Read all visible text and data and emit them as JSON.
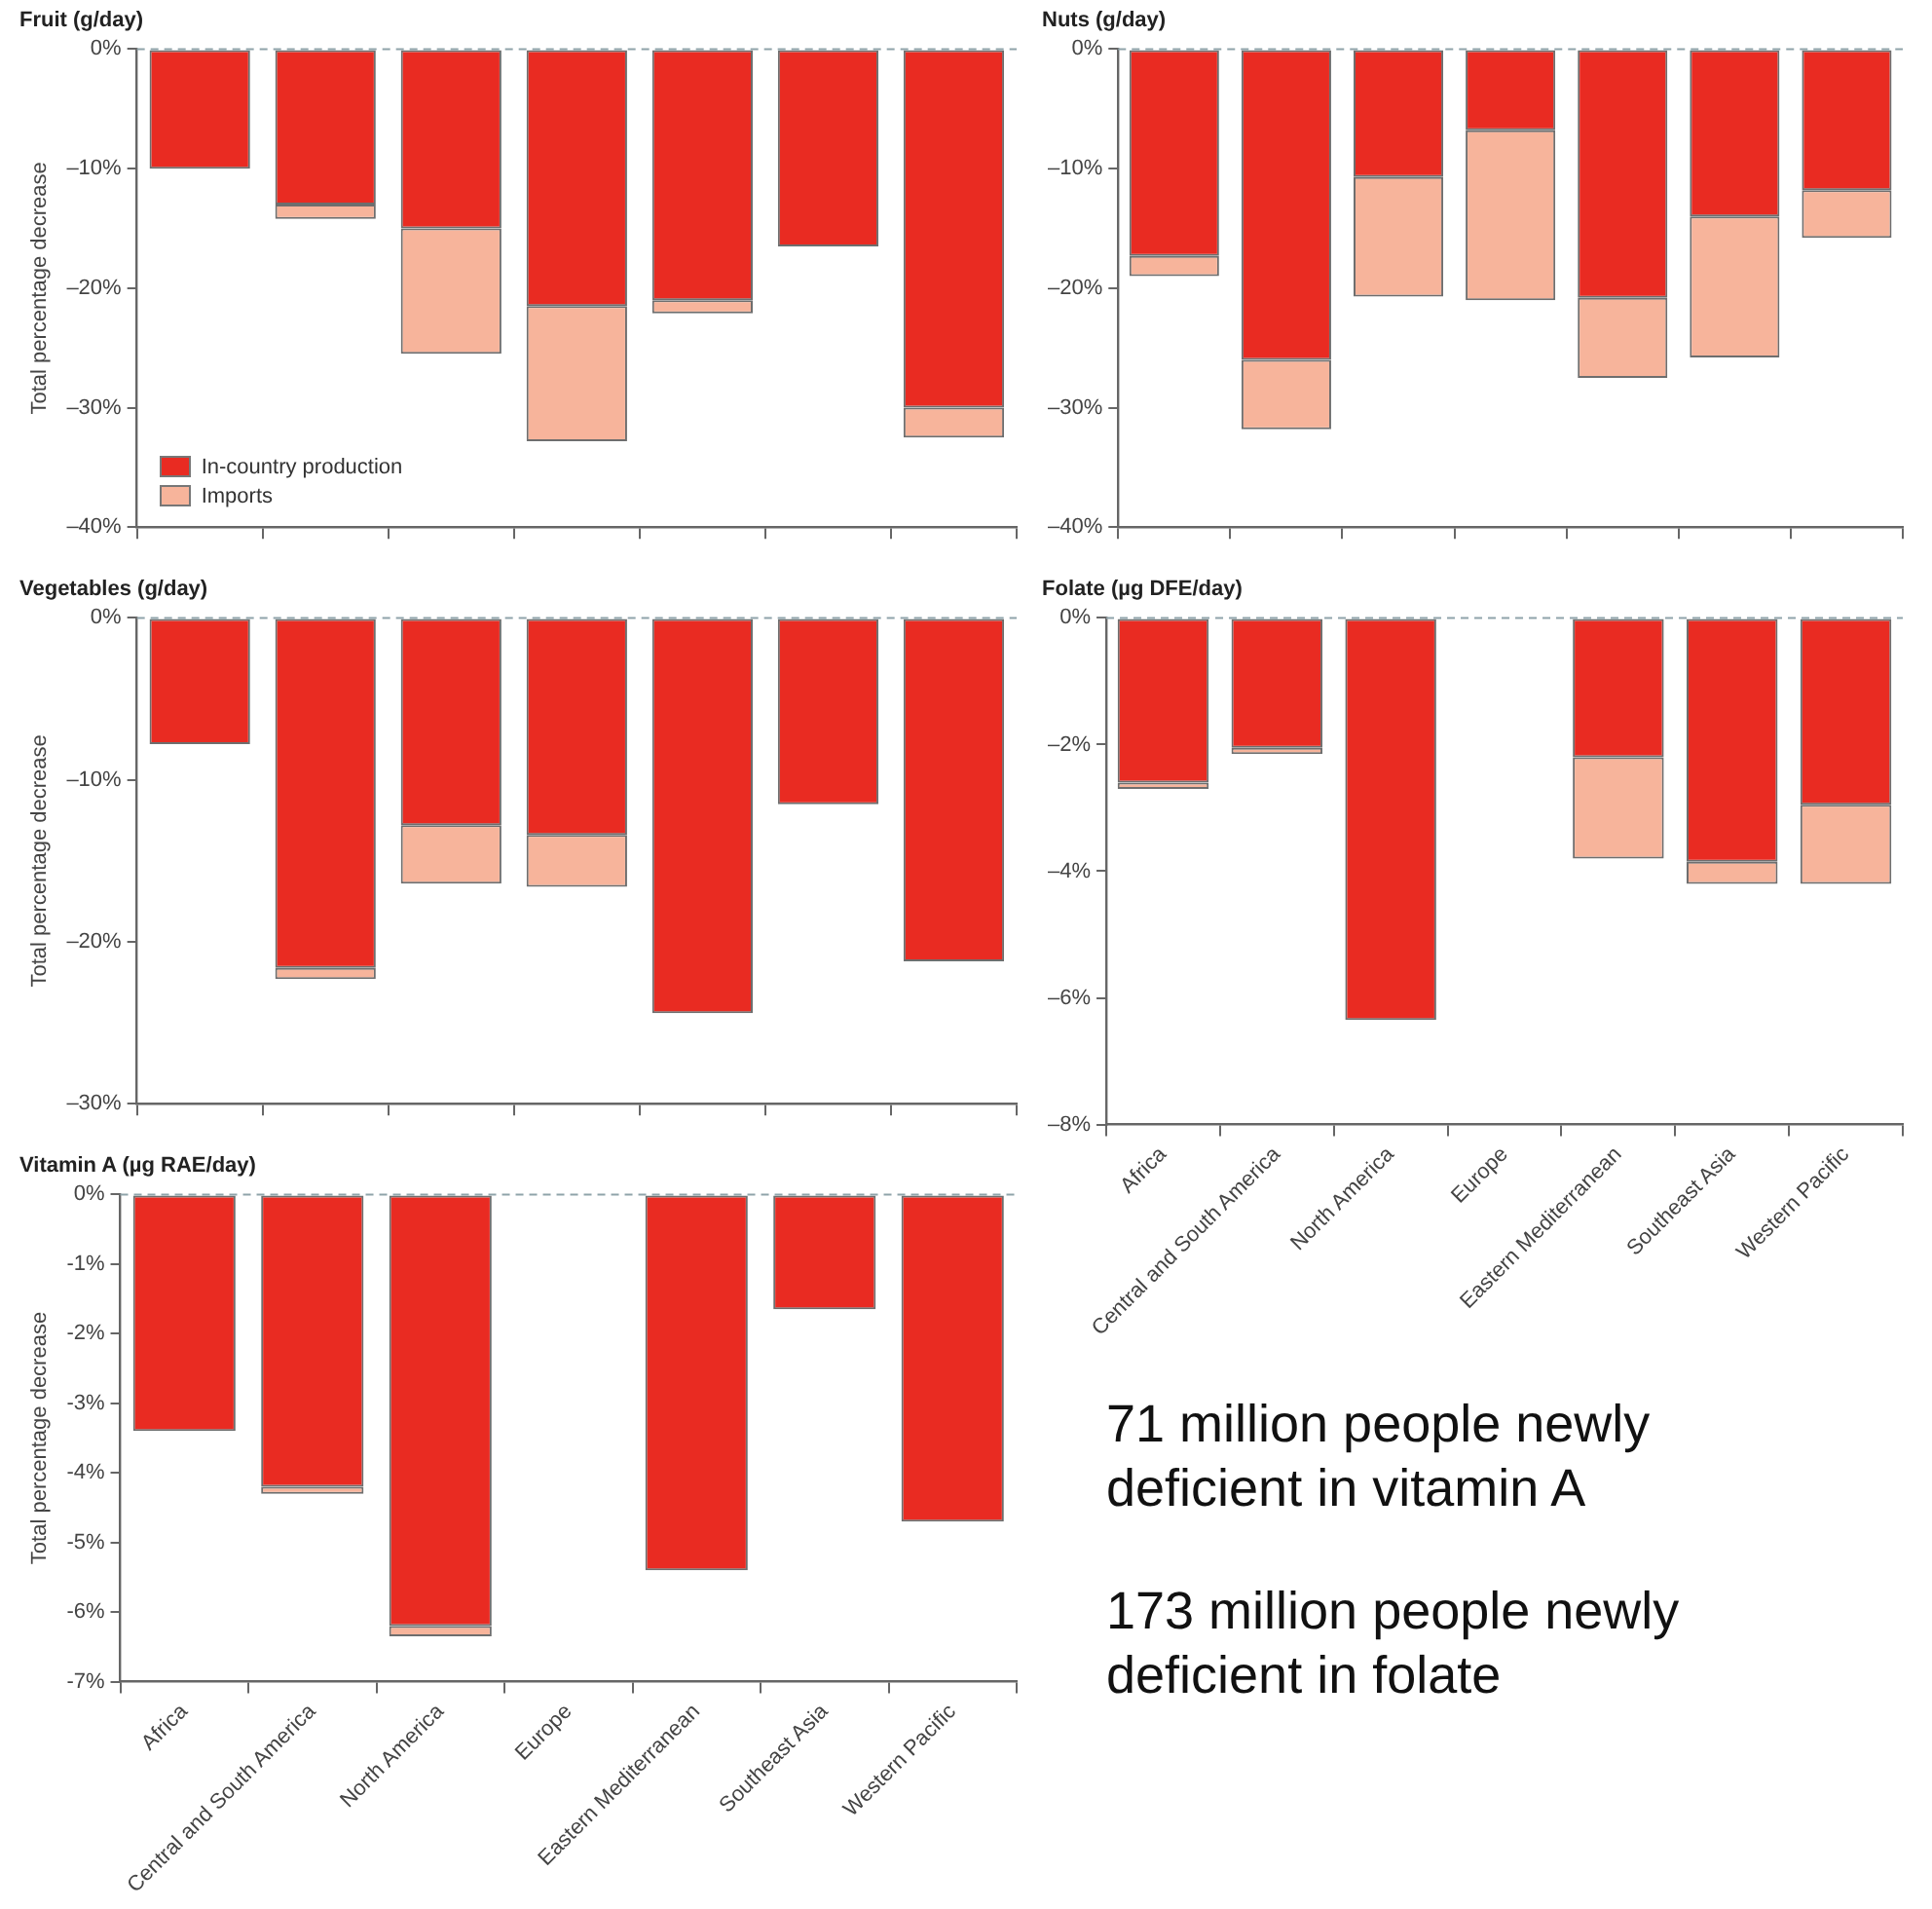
{
  "chart_data": [
    {
      "type": "bar",
      "title": "Fruit (g/day)",
      "ylabel": "Total percentage decrease",
      "stacked": true,
      "legend": "bottom left",
      "grid": false,
      "categories": [
        null,
        null,
        null,
        null,
        null,
        null,
        null
      ],
      "series": [
        {
          "name": "In-country production",
          "color": "#e92b22",
          "values": [
            -10,
            -13,
            -15,
            -21.5,
            -21,
            -16.5,
            -30
          ]
        },
        {
          "name": "Imports",
          "color": "#f7b49b",
          "values": [
            0,
            -1.2,
            -10.5,
            -11.3,
            -1.1,
            0,
            -2.5
          ]
        }
      ],
      "ylim": [
        -40,
        0
      ],
      "yticks": [
        {
          "value": 0,
          "label": "0%"
        },
        {
          "value": -10,
          "label": "–10%"
        },
        {
          "value": -20,
          "label": "–20%"
        },
        {
          "value": -30,
          "label": "–30%"
        },
        {
          "value": -40,
          "label": "–40%"
        }
      ],
      "ref_lines": [
        {
          "axis": "y",
          "value": 0,
          "color": "#8fa3aa",
          "line_style": "dashed"
        }
      ]
    },
    {
      "type": "bar",
      "title": "Nuts (g/day)",
      "stacked": true,
      "grid": false,
      "categories": [
        null,
        null,
        null,
        null,
        null,
        null,
        null
      ],
      "series": [
        {
          "color": "#e92b22",
          "values": [
            -17.3,
            -26,
            -10.7,
            -6.8,
            -20.8,
            -14,
            -11.8
          ]
        },
        {
          "color": "#f7b49b",
          "values": [
            -1.7,
            -5.8,
            -10,
            -14.2,
            -6.7,
            -11.8,
            -4
          ]
        }
      ],
      "ylim": [
        -40,
        0
      ],
      "yticks": [
        {
          "value": 0,
          "label": "0%"
        },
        {
          "value": -10,
          "label": "–10%"
        },
        {
          "value": -20,
          "label": "–20%"
        },
        {
          "value": -30,
          "label": "–30%"
        },
        {
          "value": -40,
          "label": "–40%"
        }
      ],
      "ref_lines": [
        {
          "axis": "y",
          "value": 0,
          "color": "#8fa3aa",
          "line_style": "dashed"
        }
      ]
    },
    {
      "type": "bar",
      "title": "Vegetables (g/day)",
      "ylabel": "Total percentage decrease",
      "stacked": true,
      "grid": false,
      "categories": [
        null,
        null,
        null,
        null,
        null,
        null,
        null
      ],
      "series": [
        {
          "color": "#e92b22",
          "values": [
            -7.8,
            -21.6,
            -12.8,
            -13.4,
            -24.4,
            -11.5,
            -21.2
          ]
        },
        {
          "color": "#f7b49b",
          "values": [
            0,
            -0.7,
            -3.6,
            -3.2,
            0,
            0,
            0
          ]
        }
      ],
      "ylim": [
        -30,
        0
      ],
      "yticks": [
        {
          "value": 0,
          "label": "0%"
        },
        {
          "value": -10,
          "label": "–10%"
        },
        {
          "value": -20,
          "label": "–20%"
        },
        {
          "value": -30,
          "label": "–30%"
        }
      ],
      "ref_lines": [
        {
          "axis": "y",
          "value": 0,
          "color": "#8fa3aa",
          "line_style": "dashed"
        }
      ]
    },
    {
      "type": "bar",
      "title": "Folate (µg DFE/day)",
      "stacked": true,
      "grid": false,
      "categories": [
        "Africa",
        "Central and South America",
        "North America",
        "Europe",
        "Eastern Mediterranean",
        "Southeast Asia",
        "Western Pacific"
      ],
      "series": [
        {
          "color": "#e92b22",
          "values": [
            -2.6,
            -2.05,
            -6.35,
            null,
            -2.2,
            -3.85,
            -2.95
          ]
        },
        {
          "color": "#f7b49b",
          "values": [
            -0.1,
            -0.1,
            0,
            null,
            -1.6,
            -0.35,
            -1.25
          ]
        }
      ],
      "ylim": [
        -8,
        0
      ],
      "yticks": [
        {
          "value": 0,
          "label": "0%"
        },
        {
          "value": -2,
          "label": "–2%"
        },
        {
          "value": -4,
          "label": "–4%"
        },
        {
          "value": -6,
          "label": "–6%"
        },
        {
          "value": -8,
          "label": "–8%"
        }
      ],
      "ref_lines": [
        {
          "axis": "y",
          "value": 0,
          "color": "#8fa3aa",
          "line_style": "dashed"
        }
      ]
    },
    {
      "type": "bar",
      "title": "Vitamin A (µg RAE/day)",
      "ylabel": "Total percentage decrease",
      "stacked": true,
      "grid": false,
      "categories": [
        "Africa",
        "Central and South America",
        "North America",
        "Europe",
        "Eastern Mediterranean",
        "Southeast Asia",
        "Western Pacific"
      ],
      "series": [
        {
          "color": "#e92b22",
          "values": [
            -3.4,
            -4.2,
            -6.2,
            null,
            -5.4,
            -1.65,
            -4.7
          ]
        },
        {
          "color": "#f7b49b",
          "values": [
            0,
            -0.1,
            -0.15,
            null,
            0,
            0,
            0
          ]
        }
      ],
      "ylim": [
        -7,
        0
      ],
      "yticks": [
        {
          "value": 0,
          "label": "0%"
        },
        {
          "value": -1,
          "label": "-1%"
        },
        {
          "value": -2,
          "label": "-2%"
        },
        {
          "value": -3,
          "label": "-3%"
        },
        {
          "value": -4,
          "label": "-4%"
        },
        {
          "value": -5,
          "label": "-5%"
        },
        {
          "value": -6,
          "label": "-6%"
        },
        {
          "value": -7,
          "label": "-7%"
        }
      ],
      "ref_lines": [
        {
          "axis": "y",
          "value": 0,
          "color": "#8fa3aa",
          "line_style": "dashed"
        }
      ]
    },
    {
      "type": "other",
      "annotations": [
        "71 million people newly deficient in vitamin A",
        "173 million people newly deficient in folate"
      ]
    }
  ]
}
